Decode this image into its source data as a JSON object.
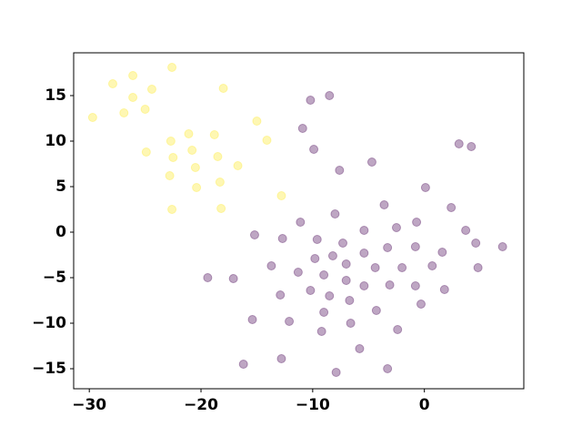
{
  "chart_data": {
    "type": "scatter",
    "alpha": 0.35,
    "xlim": [
      -31.4,
      8.9
    ],
    "ylim": [
      -17.2,
      19.7
    ],
    "xticks": [
      {
        "value": -30,
        "label": "−30"
      },
      {
        "value": -20,
        "label": "−20"
      },
      {
        "value": -10,
        "label": "−10"
      },
      0
    ],
    "yticks": [
      {
        "value": -15,
        "label": "−15"
      },
      {
        "value": -10,
        "label": "−10"
      },
      {
        "value": -5,
        "label": "−5"
      },
      0,
      5,
      10,
      15
    ],
    "series": [
      {
        "color": "#fde725",
        "x": [
          -22.6,
          -27.9,
          -26.1,
          -26.1,
          -24.4,
          -18.0,
          -29.7,
          -26.9,
          -25.0,
          -15.0,
          -14.1,
          -21.1,
          -18.8,
          -22.7,
          -20.8,
          -24.9,
          -22.5,
          -18.5,
          -16.7,
          -20.5,
          -22.8,
          -18.3,
          -20.4,
          -12.8,
          -22.6,
          -18.2
        ],
        "values": [
          18.1,
          16.3,
          17.2,
          14.8,
          15.7,
          15.8,
          12.6,
          13.1,
          13.5,
          12.2,
          10.1,
          10.8,
          10.7,
          10.0,
          9.0,
          8.8,
          8.2,
          8.3,
          7.3,
          7.1,
          6.2,
          5.5,
          4.9,
          4.0,
          2.5,
          2.6
        ]
      },
      {
        "color": "#440154",
        "x": [
          -10.2,
          -8.5,
          -10.9,
          -9.9,
          -7.6,
          -4.7,
          3.1,
          4.2,
          0.1,
          -3.6,
          -8.0,
          -11.1,
          2.4,
          -0.7,
          -2.5,
          -5.4,
          3.7,
          -15.2,
          -12.7,
          -9.6,
          -7.3,
          4.6,
          7.0,
          -3.3,
          -0.8,
          -5.4,
          1.6,
          -8.2,
          -9.8,
          -7.0,
          -13.7,
          -4.4,
          -2.0,
          0.7,
          4.8,
          -11.3,
          -9.0,
          -19.4,
          -17.1,
          -7.0,
          -5.4,
          -3.1,
          -0.8,
          1.8,
          -10.2,
          -8.5,
          -12.9,
          -6.7,
          -0.3,
          -9.0,
          -4.3,
          -15.4,
          -12.1,
          -6.6,
          -9.2,
          -2.4,
          -5.8,
          -12.8,
          -16.2,
          -7.9,
          -3.3
        ],
        "values": [
          14.5,
          15.0,
          11.4,
          9.1,
          6.8,
          7.7,
          9.7,
          9.4,
          4.9,
          3.0,
          2.0,
          1.1,
          2.7,
          1.1,
          0.5,
          0.2,
          0.2,
          -0.3,
          -0.7,
          -0.8,
          -1.2,
          -1.2,
          -1.6,
          -1.7,
          -1.6,
          -2.3,
          -2.2,
          -2.6,
          -2.9,
          -3.5,
          -3.7,
          -3.9,
          -3.9,
          -3.7,
          -3.9,
          -4.4,
          -4.7,
          -5.0,
          -5.1,
          -5.3,
          -5.9,
          -5.8,
          -5.9,
          -6.3,
          -6.4,
          -7.0,
          -6.9,
          -7.5,
          -7.9,
          -8.8,
          -8.6,
          -9.6,
          -9.8,
          -10.0,
          -10.9,
          -10.7,
          -12.8,
          -13.9,
          -14.5,
          -15.4,
          -15.0
        ]
      }
    ]
  }
}
